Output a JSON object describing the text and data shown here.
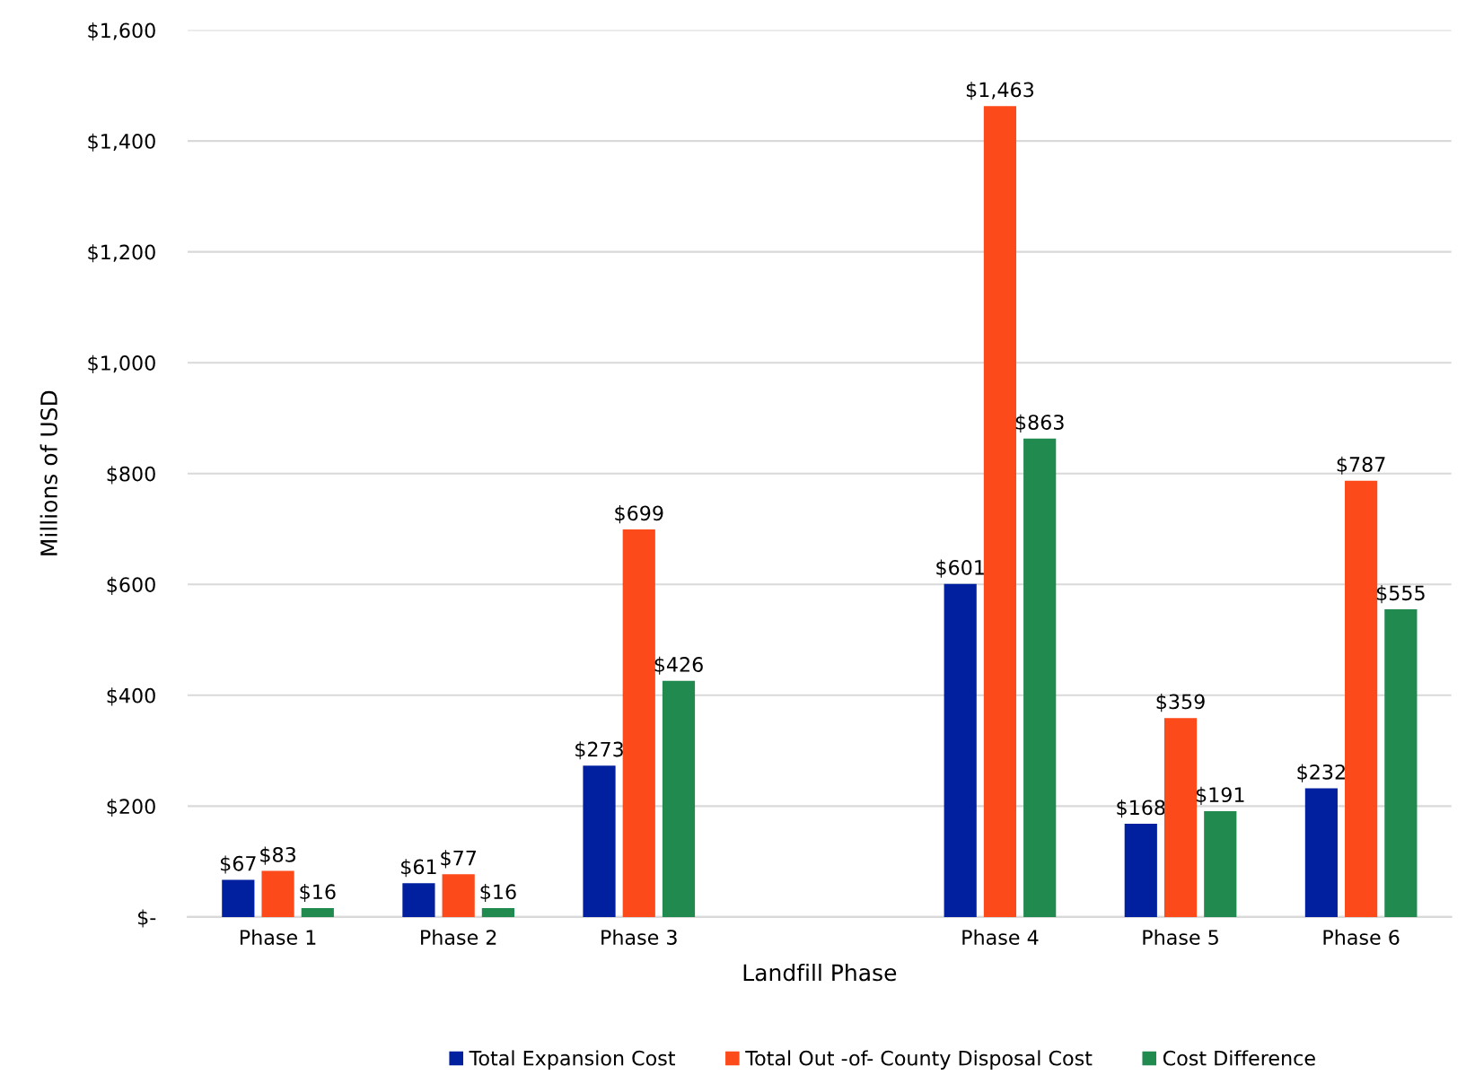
{
  "chart_data": {
    "type": "bar",
    "xlabel": "Landfill Phase",
    "ylabel": "Millions of USD",
    "categories": [
      "Phase 1",
      "Phase 2",
      "Phase 3",
      null,
      "Phase 4",
      "Phase 5",
      "Phase 6"
    ],
    "series": [
      {
        "name": "Total Expansion Cost",
        "color": "#0020a0",
        "values": [
          67,
          61,
          273,
          null,
          601,
          168,
          232
        ],
        "value_labels": [
          "$67",
          "$61",
          "$273",
          null,
          "$601",
          "$168",
          "$232"
        ]
      },
      {
        "name": "Total Out -of- County Disposal Cost",
        "color": "#fc4a1a",
        "values": [
          83,
          77,
          699,
          null,
          1463,
          359,
          787
        ],
        "value_labels": [
          "$83",
          "$77",
          "$699",
          null,
          "$1,463",
          "$359",
          "$787"
        ]
      },
      {
        "name": "Cost Difference",
        "color": "#218a4f",
        "values": [
          16,
          16,
          426,
          null,
          863,
          191,
          555
        ],
        "value_labels": [
          "$16",
          "$16",
          "$426",
          null,
          "$863",
          "$191",
          "$555"
        ]
      }
    ],
    "ylim": [
      0,
      1600
    ],
    "yticks": [
      {
        "value": 0,
        "label": "$-"
      },
      {
        "value": 200,
        "label": "$200"
      },
      {
        "value": 400,
        "label": "$400"
      },
      {
        "value": 600,
        "label": "$600"
      },
      {
        "value": 800,
        "label": "$800"
      },
      {
        "value": 1000,
        "label": "$1,000"
      },
      {
        "value": 1200,
        "label": "$1,200"
      },
      {
        "value": 1400,
        "label": "$1,400"
      },
      {
        "value": 1600,
        "label": "$1,600"
      }
    ],
    "grid": "y",
    "legend": "bottom"
  }
}
